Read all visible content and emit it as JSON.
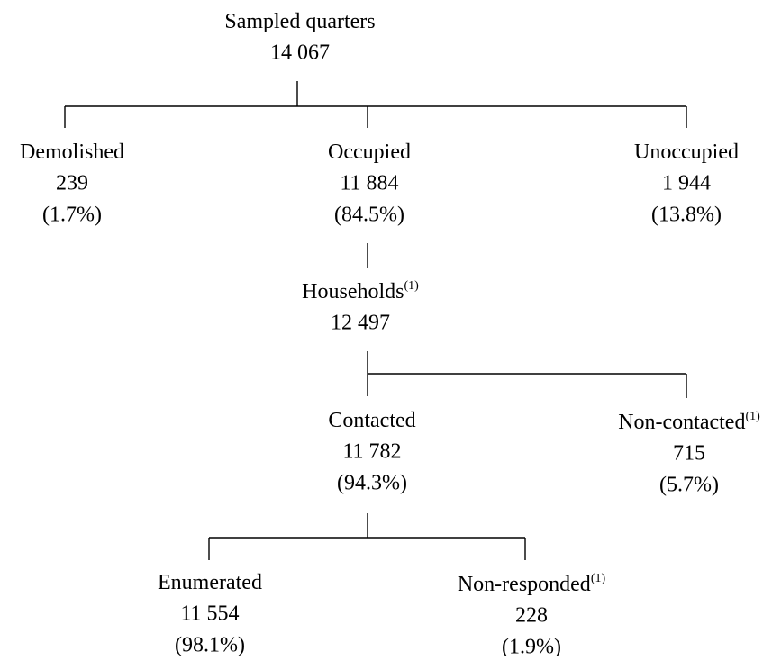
{
  "nodes": [
    {
      "label": "Sampled quarters",
      "count": "14 067"
    },
    {
      "label": "Demolished",
      "count": "239",
      "share": "(1.7%)"
    },
    {
      "label": "Occupied",
      "count": "11 884",
      "share": "(84.5%)"
    },
    {
      "label": "Unoccupied",
      "count": "1 944",
      "share": "(13.8%)"
    },
    {
      "label": "Households",
      "note": "(1)",
      "count": "12 497"
    },
    {
      "label": "Contacted",
      "count": "11 782",
      "share": "(94.3%)"
    },
    {
      "label": "Non-contacted",
      "note": "(1)",
      "count": "715",
      "share": "(5.7%)"
    },
    {
      "label": "Enumerated",
      "count": "11 554",
      "share": "(98.1%)"
    },
    {
      "label": "Non-responded",
      "note": "(1)",
      "count": "228",
      "share": "(1.9%)"
    }
  ]
}
